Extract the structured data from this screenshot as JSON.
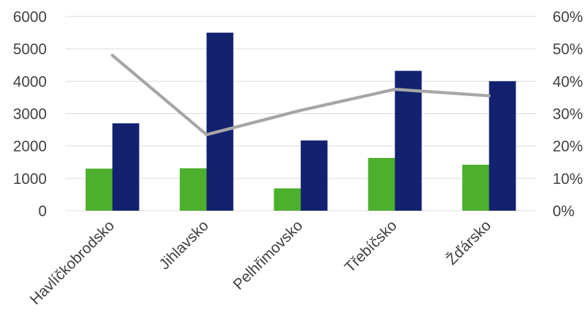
{
  "chart_data": {
    "type": "bar",
    "title": "",
    "xlabel": "",
    "ylabel": "",
    "categories": [
      "Havlíčkobrodsko",
      "Jihlavsko",
      "Pelhřimovsko",
      "Třebíčsko",
      "Žďársko"
    ],
    "series": [
      {
        "kind": "bar",
        "axis": "left",
        "color": "#4daf2e",
        "values": [
          1300,
          1310,
          690,
          1630,
          1420
        ]
      },
      {
        "kind": "bar",
        "axis": "left",
        "color": "#12226e",
        "values": [
          2700,
          5500,
          2170,
          4320,
          4000
        ]
      },
      {
        "kind": "line",
        "axis": "right",
        "color": "#a6a6a6",
        "values": [
          0.48,
          0.235,
          0.31,
          0.375,
          0.355
        ]
      }
    ],
    "ylim": [
      0,
      6000
    ],
    "y_ticks": [
      "0",
      "1000",
      "2000",
      "3000",
      "4000",
      "5000",
      "6000"
    ],
    "y2lim": [
      0,
      0.6
    ],
    "y2_ticks": [
      "0%",
      "10%",
      "20%",
      "30%",
      "40%",
      "50%",
      "60%"
    ],
    "grid": true,
    "gridColor": "#d9d9d9",
    "legend": "none"
  }
}
